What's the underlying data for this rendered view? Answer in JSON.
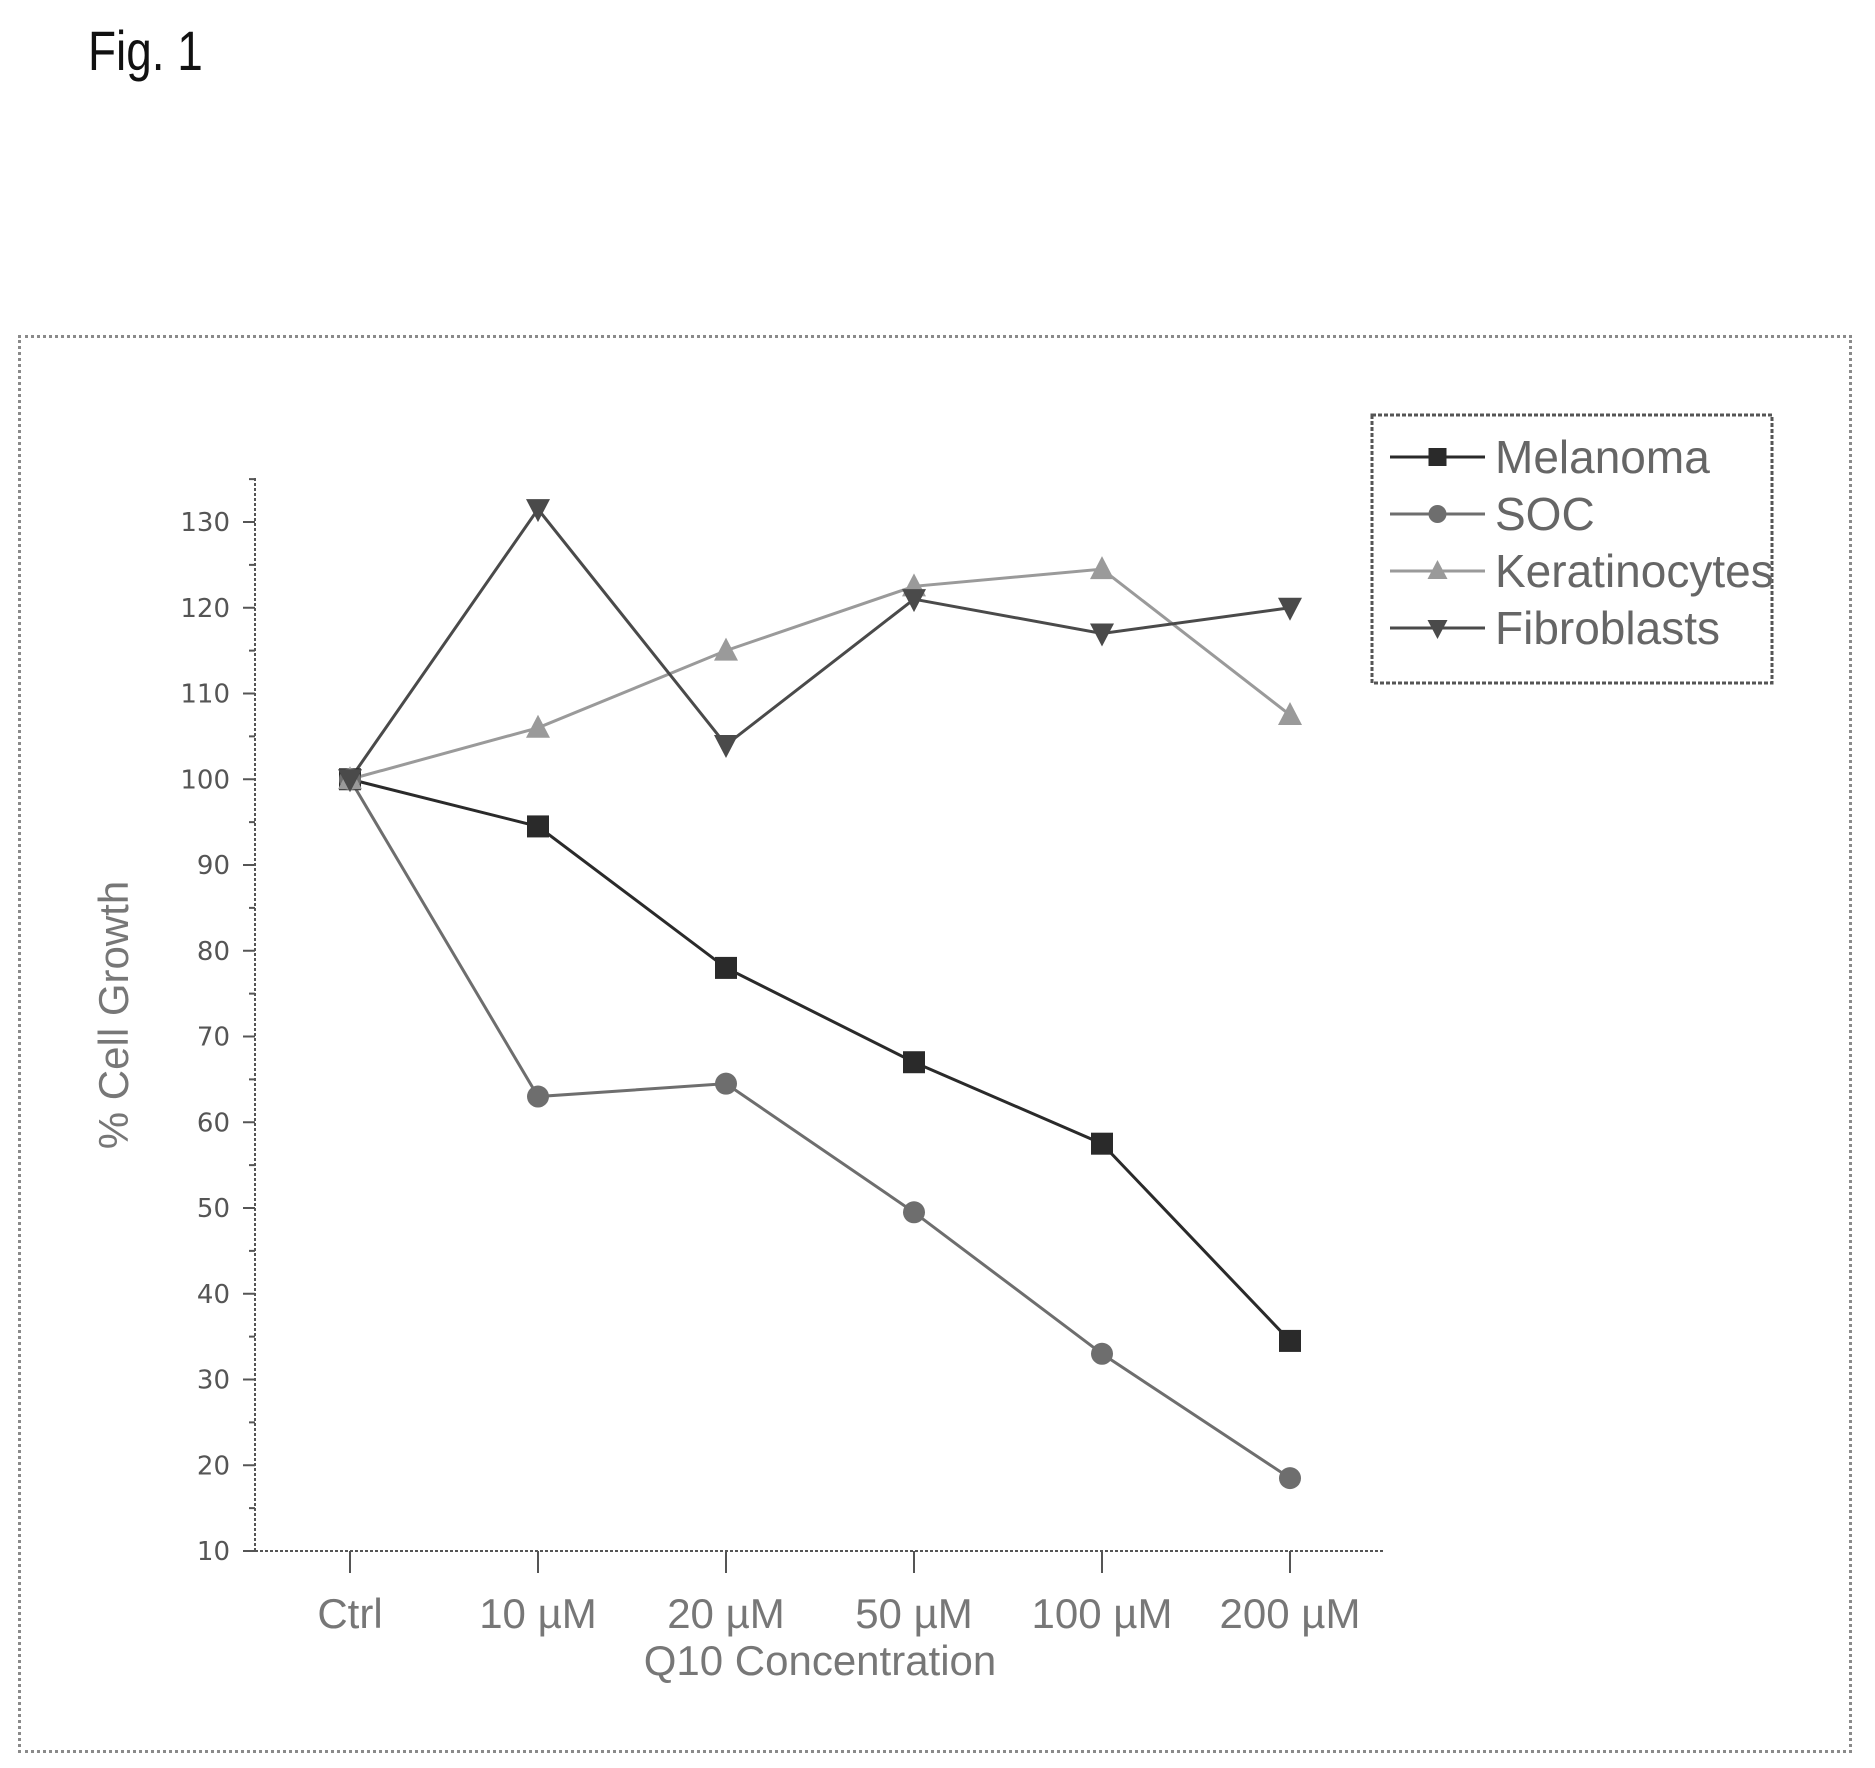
{
  "figure_label": "Fig. 1",
  "colors": {
    "Melanoma": "#2a2a2a",
    "SOC": "#6e6e6e",
    "Keratinocytes": "#9a9a9a",
    "Fibroblasts": "#4a4a4a"
  },
  "chart_data": {
    "type": "line",
    "xlabel": "Q10 Concentration",
    "ylabel": "% Cell Growth",
    "categories": [
      "Ctrl",
      "10 µM",
      "20 µM",
      "50 µM",
      "100 µM",
      "200 µM"
    ],
    "ylim": [
      10,
      135
    ],
    "yticks": [
      10,
      20,
      30,
      40,
      50,
      60,
      70,
      80,
      90,
      100,
      110,
      120,
      130
    ],
    "legend_position": "top-right",
    "grid": false,
    "series": [
      {
        "name": "Melanoma",
        "marker": "square",
        "values": [
          100,
          94.5,
          78,
          67,
          57.5,
          34.5
        ]
      },
      {
        "name": "SOC",
        "marker": "circle",
        "values": [
          100,
          63,
          64.5,
          49.5,
          33,
          18.5
        ]
      },
      {
        "name": "Keratinocytes",
        "marker": "triangle-up",
        "values": [
          100,
          106,
          115,
          122.5,
          124.5,
          107.5
        ]
      },
      {
        "name": "Fibroblasts",
        "marker": "triangle-down",
        "values": [
          100,
          131.5,
          104,
          121,
          117,
          120
        ]
      }
    ]
  }
}
